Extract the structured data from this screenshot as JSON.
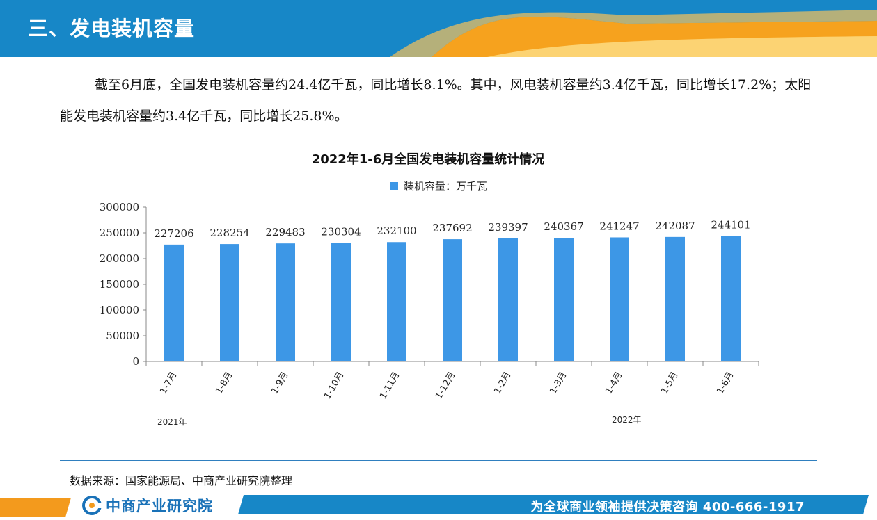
{
  "header": {
    "title": "三、发电装机容量"
  },
  "intro": {
    "text": "截至6月底，全国发电装机容量约24.4亿千瓦，同比增长8.1%。其中，风电装机容量约3.4亿千瓦，同比增长17.2%；太阳能发电装机容量约3.4亿千瓦，同比增长25.8%。"
  },
  "chart_data": {
    "type": "bar",
    "title": "2022年1-6月全国发电装机容量统计情况",
    "categories": [
      "1-7月",
      "1-8月",
      "1-9月",
      "1-10月",
      "1-11月",
      "1-12月",
      "1-2月",
      "1-3月",
      "1-4月",
      "1-5月",
      "1-6月"
    ],
    "series": [
      {
        "name": "装机容量：万千瓦",
        "values": [
          227206,
          228254,
          229483,
          230304,
          232100,
          237692,
          239397,
          240367,
          241247,
          242087,
          244101
        ],
        "color": "#3d97e6"
      }
    ],
    "year_labels": [
      "2021年",
      "2022年"
    ],
    "ylim": [
      0,
      300000
    ],
    "yticks": [
      0,
      50000,
      100000,
      150000,
      200000,
      250000,
      300000
    ],
    "legend_position": "top-center",
    "grid": false,
    "data_labels": true
  },
  "source": {
    "text": "数据来源：国家能源局、中商产业研究院整理"
  },
  "footer": {
    "brand": "中商产业研究院",
    "slogan": "为全球商业领袖提供决策咨询  400-666-1917",
    "colors": {
      "brand_blue": "#1787c7",
      "accent_orange": "#f39a1d"
    }
  }
}
